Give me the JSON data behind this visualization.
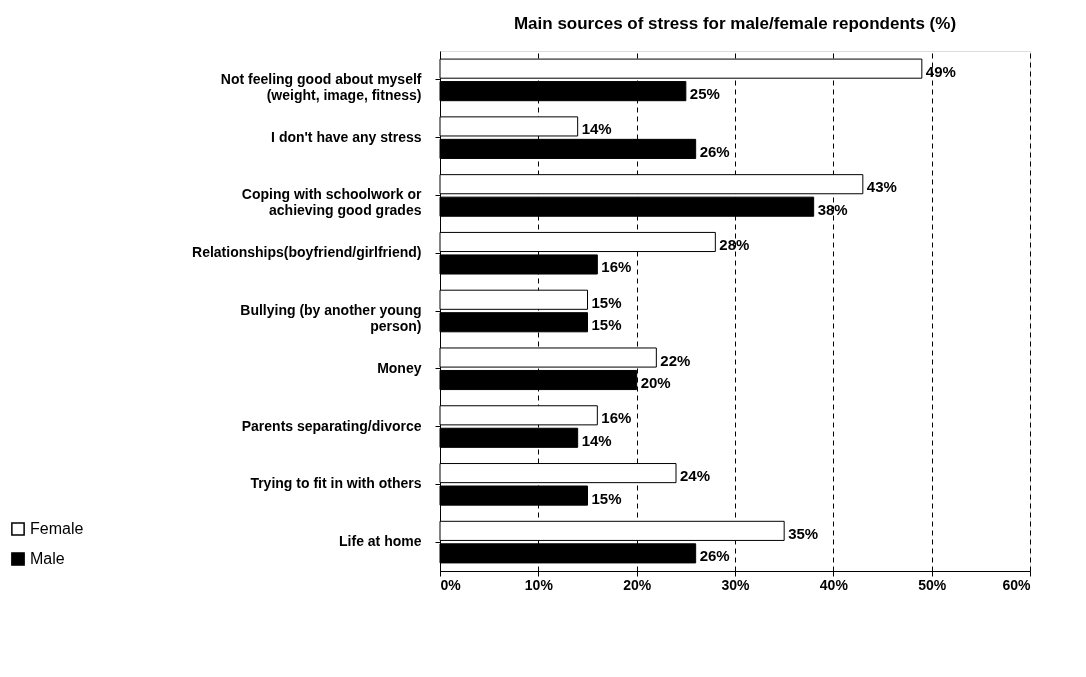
{
  "chart_data": {
    "type": "bar",
    "orientation": "horizontal",
    "title": "Main sources of stress for male/female repondents (%)",
    "categories": [
      "Not feeling good about myself\n(weight, image, fitness)",
      "I don't have any stress",
      "Coping with schoolwork or\nachieving good grades",
      "Relationships(boyfriend/girlfriend)",
      "Bullying (by another young\nperson)",
      "Money",
      "Parents separating/divorce",
      "Trying to fit in with others",
      "Life at home"
    ],
    "series": [
      {
        "name": "Female",
        "color": "#ffffff",
        "values": [
          49,
          14,
          43,
          28,
          15,
          22,
          16,
          24,
          35
        ],
        "value_labels": [
          "49%",
          "14%",
          "43%",
          "28%",
          "15%",
          "22%",
          "16%",
          "24%",
          "35%"
        ]
      },
      {
        "name": "Male",
        "color": "#000000",
        "values": [
          25,
          26,
          38,
          16,
          15,
          20,
          14,
          15,
          26
        ],
        "value_labels": [
          "25%",
          "26%",
          "38%",
          "16%",
          "15%",
          "20%",
          "14%",
          "15%",
          "26%"
        ]
      }
    ],
    "xlim": [
      0,
      60
    ],
    "xticks": [
      {
        "value": 0,
        "label": "0%"
      },
      {
        "value": 10,
        "label": "10%"
      },
      {
        "value": 20,
        "label": "20%"
      },
      {
        "value": 30,
        "label": "30%"
      },
      {
        "value": 40,
        "label": "40%"
      },
      {
        "value": 50,
        "label": "50%"
      },
      {
        "value": 60,
        "label": "60%"
      }
    ],
    "grid": "x",
    "legend": "bottom left"
  }
}
